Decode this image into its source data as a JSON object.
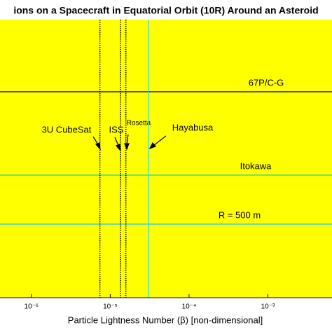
{
  "chart_data": {
    "type": "reference-lines",
    "title": "ions on a Spacecraft in Equatorial Orbit (10R) Around an Asteroid",
    "xlabel": "Particle Lightness Number (β) [non-dimensional]",
    "xscale": "log",
    "xlim": [
      4e-07,
      0.0065
    ],
    "xticks": [
      {
        "value": 1e-06,
        "label": "10⁻⁶"
      },
      {
        "value": 1e-05,
        "label": "10⁻⁵"
      },
      {
        "value": 0.0001,
        "label": "10⁻⁴"
      },
      {
        "value": 0.001,
        "label": "10⁻³"
      }
    ],
    "background": "#ffff00",
    "vlines": [
      {
        "name": "3U CubeSat",
        "value": 7.4e-06,
        "color": "#000000",
        "style": "dotted"
      },
      {
        "name": "ISS",
        "value": 1.35e-05,
        "color": "#000000",
        "style": "dotted"
      },
      {
        "name": "Rosetta",
        "value": 1.58e-05,
        "color": "#000000",
        "style": "dotted"
      },
      {
        "name": "Hayabusa",
        "value": 3.05e-05,
        "color": "#40e0d8",
        "style": "solid"
      }
    ],
    "hlines": [
      {
        "name": "67P/C-G",
        "color": "#1c1c5c"
      },
      {
        "name": "Itokawa",
        "color": "#3fdca0"
      },
      {
        "name": "R = 500 m",
        "color": "#40d4d4"
      }
    ]
  }
}
